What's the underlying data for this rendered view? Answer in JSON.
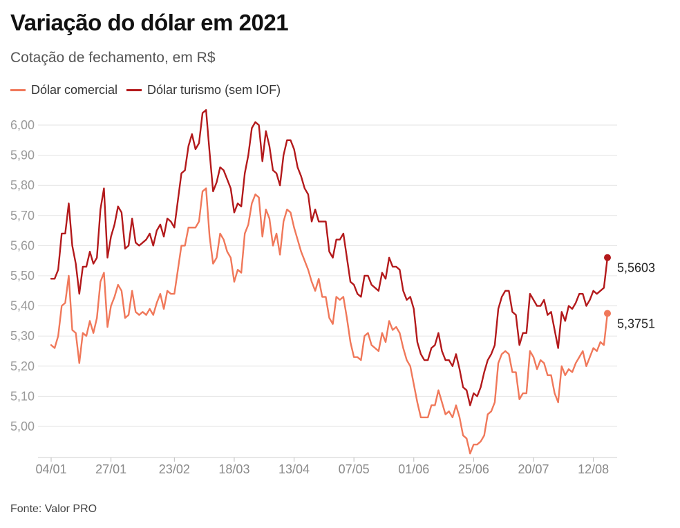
{
  "chart_data": {
    "type": "line",
    "title": "Variação do dólar em 2021",
    "subtitle": "Cotação de fechamento, em R$",
    "source": "Fonte: Valor PRO",
    "ylim": [
      4.92,
      6.07
    ],
    "yticks": [
      5.0,
      5.1,
      5.2,
      5.3,
      5.4,
      5.5,
      5.6,
      5.7,
      5.8,
      5.9,
      6.0
    ],
    "ytick_labels": [
      "5,00",
      "5,10",
      "5,20",
      "5,30",
      "5,40",
      "5,50",
      "5,60",
      "5,70",
      "5,80",
      "5,90",
      "6,00"
    ],
    "xticks": [
      {
        "label": "04/01",
        "index": 0
      },
      {
        "label": "27/01",
        "index": 17
      },
      {
        "label": "23/02",
        "index": 35
      },
      {
        "label": "18/03",
        "index": 52
      },
      {
        "label": "13/04",
        "index": 69
      },
      {
        "label": "07/05",
        "index": 86
      },
      {
        "label": "01/06",
        "index": 103
      },
      {
        "label": "25/06",
        "index": 120
      },
      {
        "label": "20/07",
        "index": 137
      },
      {
        "label": "12/08",
        "index": 154
      }
    ],
    "series": [
      {
        "name": "Dólar comercial",
        "color": "#f0785a",
        "end_label": "5,3751",
        "values": [
          5.27,
          5.26,
          5.3,
          5.4,
          5.41,
          5.5,
          5.32,
          5.31,
          5.21,
          5.31,
          5.3,
          5.35,
          5.31,
          5.36,
          5.48,
          5.51,
          5.33,
          5.4,
          5.43,
          5.47,
          5.45,
          5.36,
          5.37,
          5.45,
          5.38,
          5.37,
          5.38,
          5.37,
          5.39,
          5.37,
          5.41,
          5.44,
          5.39,
          5.45,
          5.44,
          5.44,
          5.52,
          5.6,
          5.6,
          5.66,
          5.66,
          5.66,
          5.68,
          5.78,
          5.79,
          5.63,
          5.54,
          5.56,
          5.64,
          5.62,
          5.58,
          5.56,
          5.48,
          5.52,
          5.51,
          5.64,
          5.67,
          5.74,
          5.77,
          5.76,
          5.63,
          5.72,
          5.69,
          5.6,
          5.64,
          5.57,
          5.68,
          5.72,
          5.71,
          5.66,
          5.62,
          5.58,
          5.55,
          5.52,
          5.48,
          5.45,
          5.49,
          5.43,
          5.43,
          5.36,
          5.34,
          5.43,
          5.42,
          5.43,
          5.36,
          5.28,
          5.23,
          5.23,
          5.22,
          5.3,
          5.31,
          5.27,
          5.26,
          5.25,
          5.31,
          5.28,
          5.35,
          5.32,
          5.33,
          5.31,
          5.26,
          5.22,
          5.2,
          5.14,
          5.08,
          5.03,
          5.03,
          5.03,
          5.07,
          5.07,
          5.12,
          5.08,
          5.04,
          5.05,
          5.03,
          5.07,
          5.03,
          4.97,
          4.96,
          4.91,
          4.94,
          4.94,
          4.95,
          4.97,
          5.04,
          5.05,
          5.08,
          5.21,
          5.24,
          5.25,
          5.24,
          5.18,
          5.18,
          5.09,
          5.11,
          5.11,
          5.25,
          5.23,
          5.19,
          5.22,
          5.21,
          5.17,
          5.17,
          5.11,
          5.08,
          5.2,
          5.17,
          5.19,
          5.18,
          5.21,
          5.23,
          5.25,
          5.2,
          5.23,
          5.26,
          5.25,
          5.28,
          5.27,
          5.3751
        ]
      },
      {
        "name": "Dólar turismo (sem IOF)",
        "color": "#b3191b",
        "end_label": "5,5603",
        "values": [
          5.49,
          5.49,
          5.52,
          5.64,
          5.64,
          5.74,
          5.6,
          5.54,
          5.44,
          5.53,
          5.53,
          5.58,
          5.54,
          5.56,
          5.72,
          5.79,
          5.56,
          5.63,
          5.67,
          5.73,
          5.71,
          5.59,
          5.6,
          5.69,
          5.61,
          5.6,
          5.61,
          5.62,
          5.64,
          5.6,
          5.65,
          5.67,
          5.63,
          5.69,
          5.68,
          5.66,
          5.75,
          5.84,
          5.85,
          5.93,
          5.97,
          5.92,
          5.94,
          6.04,
          6.05,
          5.91,
          5.78,
          5.81,
          5.86,
          5.85,
          5.82,
          5.79,
          5.71,
          5.74,
          5.73,
          5.84,
          5.9,
          5.99,
          6.01,
          6.0,
          5.88,
          5.98,
          5.93,
          5.85,
          5.84,
          5.8,
          5.9,
          5.95,
          5.95,
          5.92,
          5.86,
          5.83,
          5.79,
          5.77,
          5.68,
          5.72,
          5.68,
          5.68,
          5.68,
          5.58,
          5.56,
          5.62,
          5.62,
          5.64,
          5.56,
          5.48,
          5.47,
          5.44,
          5.43,
          5.5,
          5.5,
          5.47,
          5.46,
          5.45,
          5.51,
          5.49,
          5.56,
          5.53,
          5.53,
          5.52,
          5.45,
          5.42,
          5.43,
          5.39,
          5.28,
          5.24,
          5.22,
          5.22,
          5.26,
          5.27,
          5.31,
          5.25,
          5.22,
          5.22,
          5.2,
          5.24,
          5.19,
          5.13,
          5.12,
          5.07,
          5.11,
          5.1,
          5.13,
          5.18,
          5.22,
          5.24,
          5.27,
          5.39,
          5.43,
          5.45,
          5.45,
          5.38,
          5.37,
          5.27,
          5.31,
          5.31,
          5.44,
          5.42,
          5.4,
          5.4,
          5.42,
          5.37,
          5.38,
          5.32,
          5.26,
          5.38,
          5.35,
          5.4,
          5.39,
          5.41,
          5.44,
          5.44,
          5.4,
          5.42,
          5.45,
          5.44,
          5.45,
          5.46,
          5.5603
        ]
      }
    ]
  }
}
